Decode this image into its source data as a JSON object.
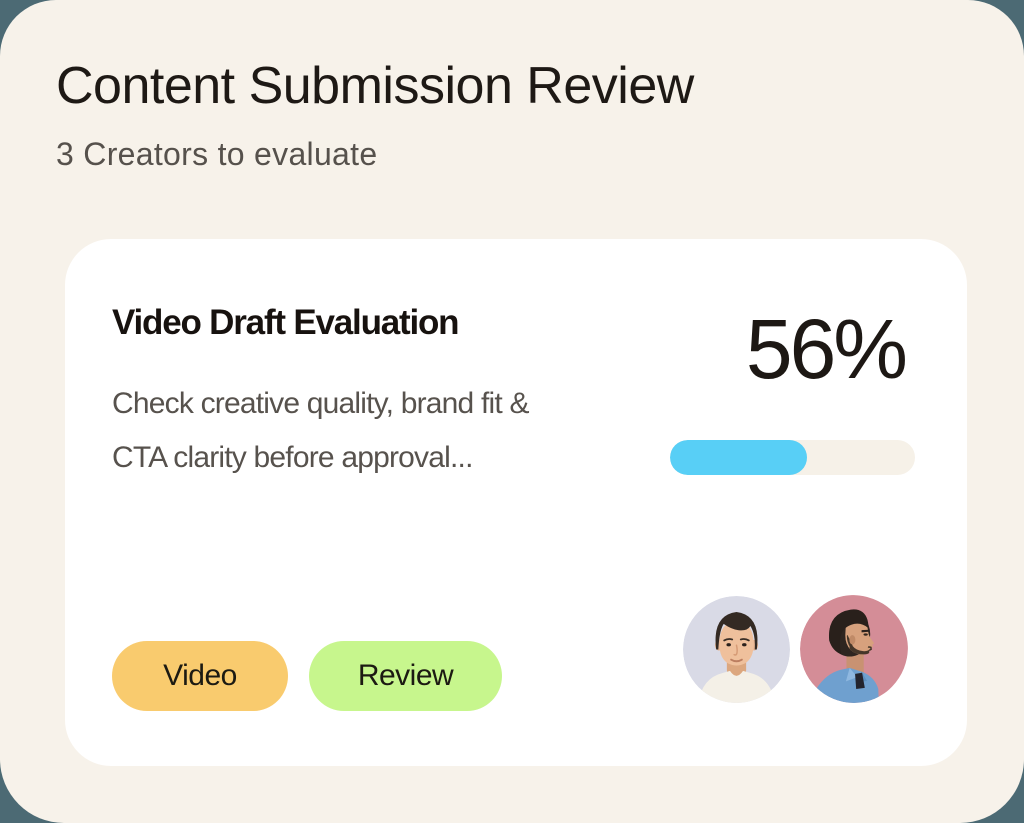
{
  "header": {
    "title": "Content Submission Review",
    "subtitle": "3 Creators to evaluate"
  },
  "card": {
    "title": "Video Draft Evaluation",
    "description_lines": [
      "Check creative quality, brand fit &",
      "CTA clarity before approval..."
    ],
    "progress": {
      "label": "56%",
      "percent": 56
    },
    "tags": [
      {
        "label": "Video",
        "color": "#F9CB6E"
      },
      {
        "label": "Review",
        "color": "#C7F68D"
      }
    ],
    "avatars": [
      {
        "name": "creator-avatar-1",
        "description": "front-facing man portrait"
      },
      {
        "name": "creator-avatar-2",
        "description": "side-profile man portrait"
      }
    ]
  },
  "colors": {
    "background": "#4C6A74",
    "panel": "#F7F2EA",
    "card": "#FFFFFF",
    "text_dark": "#1E1915",
    "text_gray": "#57524D",
    "progress_track": "#F6F1E8",
    "progress_fill": "#58CFF6",
    "avatar1_bg": "#D9DAE6",
    "avatar2_bg": "#D48D97"
  }
}
